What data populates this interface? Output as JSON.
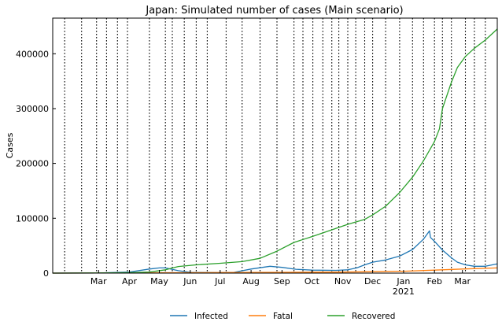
{
  "chart_data": {
    "type": "line",
    "title": "Japan: Simulated number of cases (Main scenario)",
    "xlabel": "",
    "ylabel": "Cases",
    "x_range": [
      "2020-01-15",
      "2021-04-05"
    ],
    "ylim": [
      0,
      465000
    ],
    "y_ticks": [
      0,
      100000,
      200000,
      300000,
      400000
    ],
    "x_ticks": [
      {
        "date": "2020-03-01",
        "label": "Mar",
        "sublabel": ""
      },
      {
        "date": "2020-04-01",
        "label": "Apr",
        "sublabel": ""
      },
      {
        "date": "2020-05-01",
        "label": "May",
        "sublabel": ""
      },
      {
        "date": "2020-06-01",
        "label": "Jun",
        "sublabel": ""
      },
      {
        "date": "2020-07-01",
        "label": "Jul",
        "sublabel": ""
      },
      {
        "date": "2020-08-01",
        "label": "Aug",
        "sublabel": ""
      },
      {
        "date": "2020-09-01",
        "label": "Sep",
        "sublabel": ""
      },
      {
        "date": "2020-10-01",
        "label": "Oct",
        "sublabel": ""
      },
      {
        "date": "2020-11-01",
        "label": "Nov",
        "sublabel": ""
      },
      {
        "date": "2020-12-01",
        "label": "Dec",
        "sublabel": ""
      },
      {
        "date": "2021-01-01",
        "label": "Jan",
        "sublabel": "2021"
      },
      {
        "date": "2021-02-01",
        "label": "Feb",
        "sublabel": ""
      },
      {
        "date": "2021-03-01",
        "label": "Mar",
        "sublabel": ""
      }
    ],
    "change_points": [
      "2020-01-27",
      "2020-02-13",
      "2020-02-28",
      "2020-03-09",
      "2020-03-20",
      "2020-03-30",
      "2020-04-21",
      "2020-05-07",
      "2020-05-14",
      "2020-05-26",
      "2020-06-07",
      "2020-06-18",
      "2020-07-07",
      "2020-07-23",
      "2020-08-10",
      "2020-08-27",
      "2020-09-13",
      "2020-09-22",
      "2020-10-02",
      "2020-10-12",
      "2020-10-21",
      "2020-10-28",
      "2020-11-06",
      "2020-11-14",
      "2020-11-23",
      "2020-12-01",
      "2020-12-14",
      "2020-12-28",
      "2021-01-10",
      "2021-01-21",
      "2021-02-01",
      "2021-02-09",
      "2021-02-18",
      "2021-03-04",
      "2021-03-13",
      "2021-03-24"
    ],
    "grid": "vertical dotted lines at change points",
    "legend_position": "bottom-center",
    "series": [
      {
        "name": "Infected",
        "color": "#1f77b4",
        "points": [
          [
            "2020-01-15",
            0
          ],
          [
            "2020-03-01",
            300
          ],
          [
            "2020-04-01",
            2000
          ],
          [
            "2020-04-21",
            7500
          ],
          [
            "2020-05-01",
            9500
          ],
          [
            "2020-05-07",
            9500
          ],
          [
            "2020-05-20",
            4500
          ],
          [
            "2020-06-01",
            1500
          ],
          [
            "2020-07-01",
            900
          ],
          [
            "2020-07-15",
            1500
          ],
          [
            "2020-08-01",
            7500
          ],
          [
            "2020-08-20",
            12500
          ],
          [
            "2020-09-01",
            10500
          ],
          [
            "2020-09-15",
            7000
          ],
          [
            "2020-10-01",
            5500
          ],
          [
            "2020-10-25",
            5000
          ],
          [
            "2020-11-06",
            6000
          ],
          [
            "2020-11-15",
            9500
          ],
          [
            "2020-11-23",
            15000
          ],
          [
            "2020-12-01",
            20000
          ],
          [
            "2020-12-14",
            24000
          ],
          [
            "2020-12-28",
            31000
          ],
          [
            "2021-01-10",
            43000
          ],
          [
            "2021-01-21",
            62000
          ],
          [
            "2021-01-27",
            77000
          ],
          [
            "2021-01-28",
            65000
          ],
          [
            "2021-02-01",
            58000
          ],
          [
            "2021-02-09",
            42000
          ],
          [
            "2021-02-18",
            28000
          ],
          [
            "2021-02-24",
            20000
          ],
          [
            "2021-03-04",
            15000
          ],
          [
            "2021-03-13",
            12500
          ],
          [
            "2021-03-24",
            12500
          ],
          [
            "2021-04-05",
            17000
          ]
        ]
      },
      {
        "name": "Fatal",
        "color": "#ff7f0e",
        "points": [
          [
            "2020-01-15",
            0
          ],
          [
            "2020-03-01",
            100
          ],
          [
            "2020-05-01",
            700
          ],
          [
            "2020-07-01",
            1000
          ],
          [
            "2020-08-01",
            1100
          ],
          [
            "2020-09-01",
            1500
          ],
          [
            "2020-10-01",
            1700
          ],
          [
            "2020-11-01",
            1900
          ],
          [
            "2020-12-01",
            2600
          ],
          [
            "2021-01-01",
            3500
          ],
          [
            "2021-02-01",
            5500
          ],
          [
            "2021-03-01",
            7500
          ],
          [
            "2021-04-05",
            9500
          ]
        ]
      },
      {
        "name": "Recovered",
        "color": "#2ca02c",
        "points": [
          [
            "2020-01-15",
            0
          ],
          [
            "2020-03-01",
            300
          ],
          [
            "2020-04-01",
            800
          ],
          [
            "2020-04-21",
            2000
          ],
          [
            "2020-05-07",
            6000
          ],
          [
            "2020-05-20",
            12000
          ],
          [
            "2020-06-07",
            15000
          ],
          [
            "2020-07-01",
            18000
          ],
          [
            "2020-07-23",
            21000
          ],
          [
            "2020-08-10",
            27000
          ],
          [
            "2020-08-27",
            40000
          ],
          [
            "2020-09-13",
            56000
          ],
          [
            "2020-10-02",
            67000
          ],
          [
            "2020-10-21",
            79000
          ],
          [
            "2020-11-06",
            89000
          ],
          [
            "2020-11-23",
            98000
          ],
          [
            "2020-12-01",
            106000
          ],
          [
            "2020-12-14",
            122000
          ],
          [
            "2020-12-28",
            147000
          ],
          [
            "2021-01-10",
            175000
          ],
          [
            "2021-01-21",
            205000
          ],
          [
            "2021-02-01",
            240000
          ],
          [
            "2021-02-06",
            263000
          ],
          [
            "2021-02-09",
            300000
          ],
          [
            "2021-02-18",
            348000
          ],
          [
            "2021-02-24",
            375000
          ],
          [
            "2021-03-04",
            395000
          ],
          [
            "2021-03-13",
            410000
          ],
          [
            "2021-03-24",
            425000
          ],
          [
            "2021-04-05",
            445000
          ]
        ]
      }
    ]
  }
}
